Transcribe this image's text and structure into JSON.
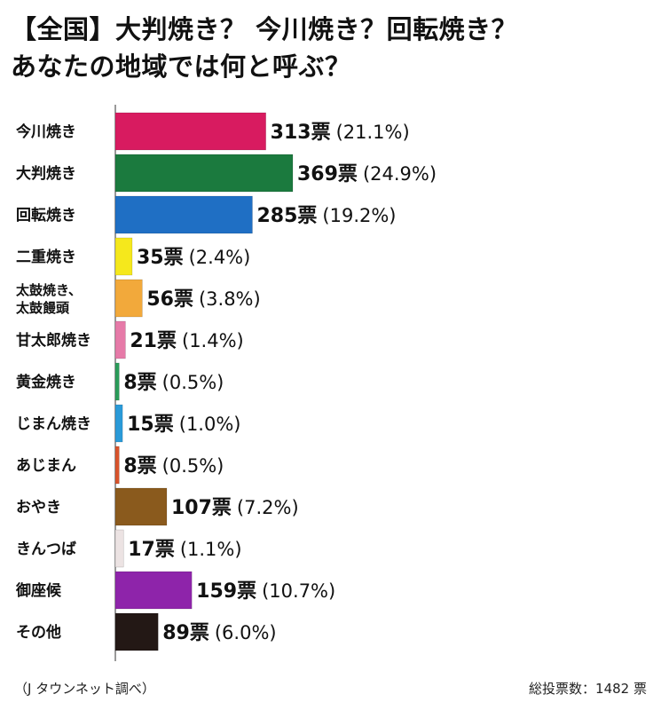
{
  "title_line1": "【全国】大判焼き？ 今川焼き？回転焼き？",
  "title_line2": "あなたの地域では何と呼ぶ？",
  "source": "（J タウンネット調べ）",
  "total": "総投票数：1482 票",
  "chart_data": {
    "type": "bar",
    "orientation": "horizontal",
    "title": "【全国】大判焼き？ 今川焼き？回転焼き？あなたの地域では何と呼ぶ？",
    "xlabel": "",
    "ylabel": "",
    "grid": false,
    "legend": "none",
    "value_suffix": "票",
    "xlim": [
      0,
      369
    ],
    "categories": [
      [
        "今川焼き"
      ],
      [
        "大判焼き"
      ],
      [
        "回転焼き"
      ],
      [
        "二重焼き"
      ],
      [
        "太鼓焼き、",
        "太鼓饅頭"
      ],
      [
        "甘太郎焼き"
      ],
      [
        "黄金焼き"
      ],
      [
        "じまん焼き"
      ],
      [
        "あじまん"
      ],
      [
        "おやき"
      ],
      [
        "きんつば"
      ],
      [
        "御座候"
      ],
      [
        "その他"
      ]
    ],
    "values": [
      313,
      369,
      285,
      35,
      56,
      21,
      8,
      15,
      8,
      107,
      17,
      159,
      89
    ],
    "percent_labels": [
      "(21.1%)",
      "(24.9%)",
      "(19.2%)",
      "(2.4%)",
      "(3.8%)",
      "(1.4%)",
      "(0.5%)",
      "(1.0%)",
      "(0.5%)",
      "(7.2%)",
      "(1.1%)",
      "(10.7%)",
      "(6.0%)"
    ],
    "colors": [
      "#d81b60",
      "#1b7a3e",
      "#1f6fc4",
      "#f5e81c",
      "#f2a93b",
      "#e67aa8",
      "#2a9c5a",
      "#2a9ad8",
      "#d9532b",
      "#8a5a1d",
      "#ece3e3",
      "#8e24aa",
      "#231815"
    ]
  }
}
